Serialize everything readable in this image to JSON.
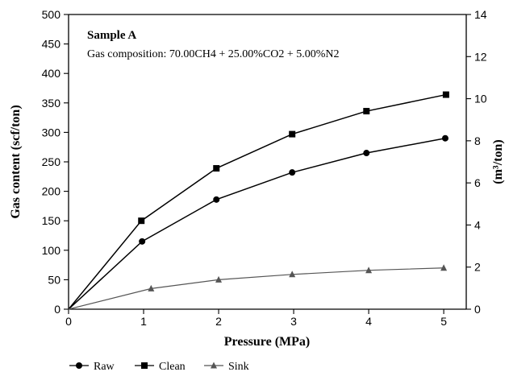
{
  "chart_data": {
    "type": "line",
    "xlabel": "Pressure (MPa)",
    "ylabel": "Gas content (scf/ton)",
    "y2label": "(m³/ton)",
    "xlim": [
      0,
      5.3
    ],
    "ylim": [
      0,
      500
    ],
    "y2lim": [
      0,
      14
    ],
    "xticks": [
      "0",
      "1",
      "2",
      "3",
      "4",
      "5"
    ],
    "yticks": [
      "0",
      "50",
      "100",
      "150",
      "200",
      "250",
      "300",
      "350",
      "400",
      "450",
      "500"
    ],
    "y2ticks": [
      "0",
      "2",
      "4",
      "6",
      "8",
      "10",
      "12",
      "14"
    ],
    "annotation": {
      "title": "Sample A",
      "text": "Gas composition: 70.00CH4 + 25.00%CO2 + 5.00%N2"
    },
    "legend_position": "bottom-left",
    "series": [
      {
        "name": "Raw",
        "marker": "circle",
        "color": "#000000",
        "points": [
          [
            0,
            0
          ],
          [
            0.98,
            115
          ],
          [
            1.97,
            186
          ],
          [
            2.98,
            232
          ],
          [
            3.97,
            265
          ],
          [
            5.02,
            290
          ]
        ]
      },
      {
        "name": "Clean",
        "marker": "square",
        "color": "#000000",
        "points": [
          [
            0,
            0
          ],
          [
            0.97,
            150
          ],
          [
            1.97,
            239
          ],
          [
            2.98,
            297
          ],
          [
            3.97,
            336
          ],
          [
            5.03,
            364
          ]
        ]
      },
      {
        "name": "Sink",
        "marker": "triangle",
        "color": "#555555",
        "points": [
          [
            0,
            0
          ],
          [
            1.1,
            35
          ],
          [
            2.0,
            50
          ],
          [
            2.98,
            59
          ],
          [
            4.0,
            66
          ],
          [
            5.0,
            70
          ]
        ]
      }
    ]
  }
}
